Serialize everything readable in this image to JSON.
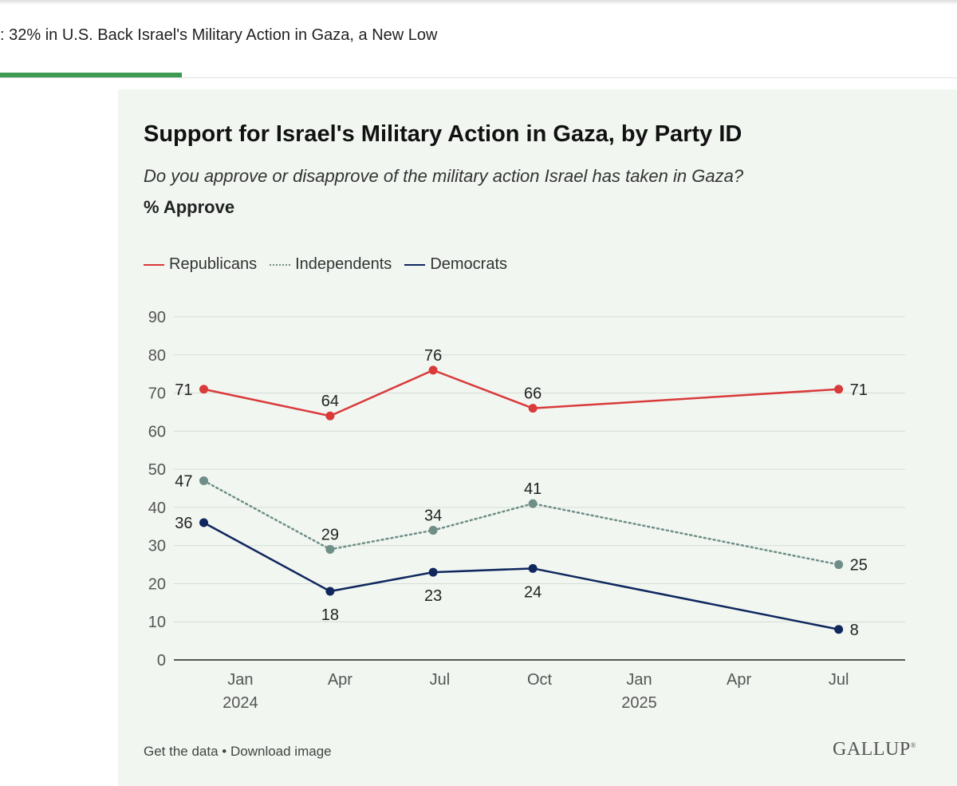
{
  "header": {
    "headline": ": 32% in U.S. Back Israel's Military Action in Gaza, a New Low",
    "reading_progress": 0.19
  },
  "card": {
    "title": "Support for Israel's Military Action in Gaza, by Party ID",
    "subtitle": "Do you approve or disapprove of the military action Israel has taken in Gaza?",
    "measure": "% Approve",
    "footer_get_data": "Get the data",
    "footer_sep": " • ",
    "footer_download": "Download image",
    "logo": "GALLUP",
    "logo_mark": "®"
  },
  "chart_data": {
    "type": "line",
    "title": "Support for Israel's Military Action in Gaza, by Party ID",
    "ylabel": "% Approve",
    "xlabel": "",
    "ylim": [
      0,
      90
    ],
    "yticks": [
      0,
      10,
      20,
      30,
      40,
      50,
      60,
      70,
      80,
      90
    ],
    "xlim_months": [
      0,
      22
    ],
    "xticks": [
      {
        "month": 2,
        "label": "Jan",
        "year": "2024"
      },
      {
        "month": 5,
        "label": "Apr",
        "year": ""
      },
      {
        "month": 8,
        "label": "Jul",
        "year": ""
      },
      {
        "month": 11,
        "label": "Oct",
        "year": ""
      },
      {
        "month": 14,
        "label": "Jan",
        "year": "2025"
      },
      {
        "month": 17,
        "label": "Apr",
        "year": ""
      },
      {
        "month": 20,
        "label": "Jul",
        "year": ""
      }
    ],
    "x_points_months": [
      0.9,
      4.7,
      7.8,
      10.8,
      20.0
    ],
    "series": [
      {
        "name": "Republicans",
        "color": "#d93a3a",
        "style": "solid",
        "values": [
          71,
          64,
          76,
          66,
          71
        ],
        "label_pos": [
          "left",
          "above",
          "above",
          "above",
          "right"
        ]
      },
      {
        "name": "Independents",
        "color": "#6f8e88",
        "style": "dotted",
        "values": [
          47,
          29,
          34,
          41,
          25
        ],
        "label_pos": [
          "left",
          "above",
          "above",
          "above",
          "right"
        ]
      },
      {
        "name": "Democrats",
        "color": "#10275e",
        "style": "solid",
        "values": [
          36,
          18,
          23,
          24,
          8
        ],
        "label_pos": [
          "left",
          "below",
          "below",
          "below",
          "right"
        ]
      }
    ],
    "legend": "top-left",
    "grid": true
  }
}
